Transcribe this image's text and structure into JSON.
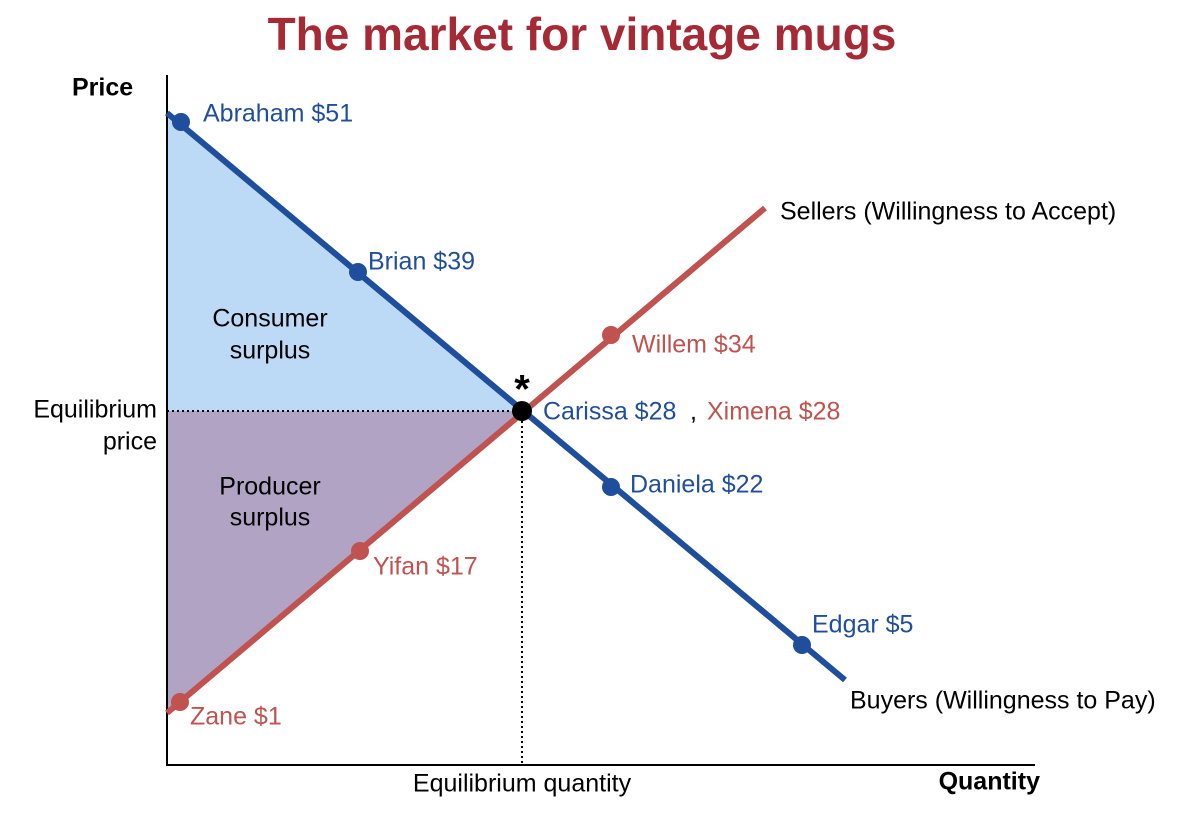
{
  "title": "The market for vintage mugs",
  "axes": {
    "y_label": "Price",
    "x_label": "Quantity"
  },
  "equilibrium": {
    "price_label": [
      "Equilibrium",
      "price"
    ],
    "quantity_label": "Equilibrium quantity",
    "marker": "*"
  },
  "areas": {
    "consumer_surplus": [
      "Consumer",
      "surplus"
    ],
    "producer_surplus": [
      "Producer",
      "surplus"
    ]
  },
  "buyers": {
    "name": "Buyers (Willingness to Pay)",
    "points": [
      "Abraham $51",
      "Brian $39",
      "Carissa $28",
      "Daniela $22",
      "Edgar $5"
    ]
  },
  "sellers": {
    "name": "Sellers (Willingness to Accept)",
    "points": [
      "Zane $1",
      "Yifan $17",
      "Ximena $28",
      "Willem $34"
    ]
  },
  "separator": ","
}
